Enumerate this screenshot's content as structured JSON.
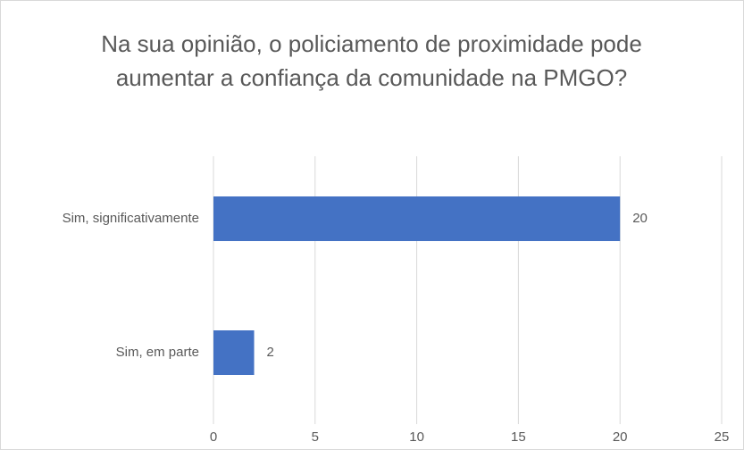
{
  "chart_data": {
    "type": "barh",
    "title": "Na sua opinião, o policiamento de proximidade pode aumentar a confiança da comunidade na PMGO?",
    "categories": [
      "Sim, significativamente",
      "Sim, em parte"
    ],
    "values": [
      20,
      2
    ],
    "color": "#4472c4",
    "xlim": [
      0,
      25
    ],
    "xticks": [
      0,
      5,
      10,
      15,
      20,
      25
    ],
    "grid": true
  }
}
